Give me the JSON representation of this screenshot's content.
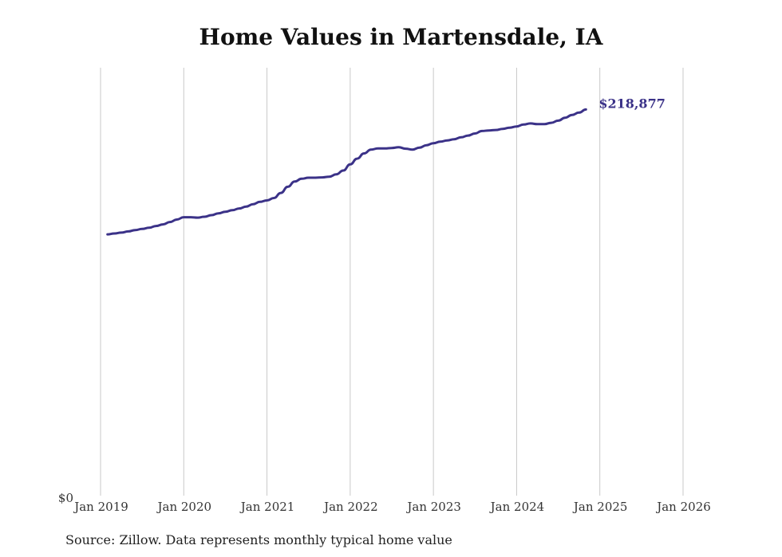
{
  "chart_data": {
    "type": "line",
    "title": "Home Values in Martensdale, IA",
    "xlabel": "",
    "ylabel": "",
    "x_tick_labels": [
      "Jan 2019",
      "Jan 2020",
      "Jan 2021",
      "Jan 2022",
      "Jan 2023",
      "Jan 2024",
      "Jan 2025",
      "Jan 2026"
    ],
    "y_tick_labels": [
      "$0"
    ],
    "ylim": [
      0,
      230000
    ],
    "xlim": [
      0,
      84
    ],
    "grid": "vertical",
    "line_color": "#3b3288",
    "end_value_label": "$218,877",
    "series": [
      {
        "name": "Typical home value",
        "points": [
          [
            1,
            147500
          ],
          [
            2,
            148000
          ],
          [
            3,
            148500
          ],
          [
            4,
            149200
          ],
          [
            5,
            150000
          ],
          [
            6,
            150600
          ],
          [
            7,
            151300
          ],
          [
            8,
            152300
          ],
          [
            9,
            153200
          ],
          [
            10,
            154600
          ],
          [
            11,
            156000
          ],
          [
            12,
            157300
          ],
          [
            13,
            157300
          ],
          [
            14,
            157100
          ],
          [
            15,
            157600
          ],
          [
            16,
            158500
          ],
          [
            17,
            159500
          ],
          [
            18,
            160400
          ],
          [
            19,
            161300
          ],
          [
            20,
            162300
          ],
          [
            21,
            163400
          ],
          [
            22,
            164800
          ],
          [
            23,
            166100
          ],
          [
            24,
            166900
          ],
          [
            25,
            168300
          ],
          [
            26,
            171200
          ],
          [
            27,
            174700
          ],
          [
            28,
            177700
          ],
          [
            29,
            179300
          ],
          [
            30,
            179900
          ],
          [
            31,
            179900
          ],
          [
            32,
            180100
          ],
          [
            33,
            180500
          ],
          [
            34,
            181800
          ],
          [
            35,
            184000
          ],
          [
            36,
            187500
          ],
          [
            37,
            190800
          ],
          [
            38,
            193800
          ],
          [
            39,
            196000
          ],
          [
            40,
            196600
          ],
          [
            41,
            196600
          ],
          [
            42,
            196900
          ],
          [
            43,
            197300
          ],
          [
            44,
            196500
          ],
          [
            45,
            196000
          ],
          [
            46,
            197100
          ],
          [
            47,
            198500
          ],
          [
            48,
            199600
          ],
          [
            49,
            200500
          ],
          [
            50,
            201200
          ],
          [
            51,
            201900
          ],
          [
            52,
            203000
          ],
          [
            53,
            204000
          ],
          [
            54,
            205200
          ],
          [
            55,
            206600
          ],
          [
            56,
            206900
          ],
          [
            57,
            207200
          ],
          [
            58,
            207800
          ],
          [
            59,
            208500
          ],
          [
            60,
            209200
          ],
          [
            61,
            210300
          ],
          [
            62,
            210900
          ],
          [
            63,
            210500
          ],
          [
            64,
            210500
          ],
          [
            65,
            211300
          ],
          [
            66,
            212500
          ],
          [
            67,
            214200
          ],
          [
            68,
            215800
          ],
          [
            69,
            217100
          ],
          [
            70,
            218877
          ]
        ]
      }
    ]
  },
  "source_note": "Source: Zillow. Data represents monthly typical home value"
}
